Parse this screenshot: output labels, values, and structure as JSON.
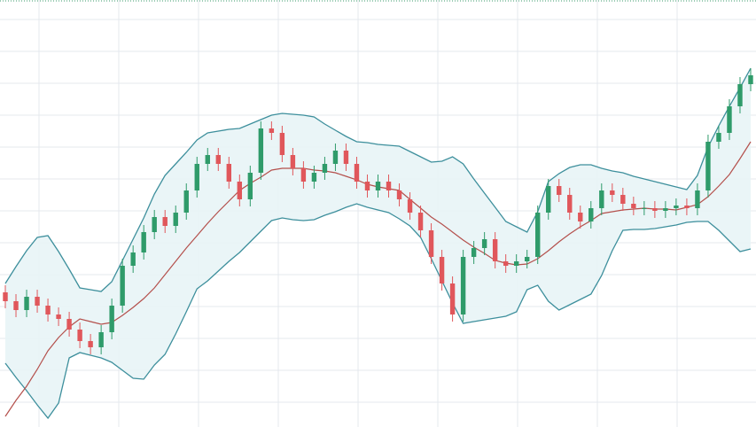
{
  "chart_data": {
    "type": "candlestick",
    "categories": [
      null,
      null,
      null,
      null,
      null,
      null,
      null,
      null,
      null,
      null,
      null,
      null,
      null,
      null,
      null,
      null,
      null,
      null,
      null,
      null,
      null,
      null,
      null,
      null,
      null,
      null,
      null,
      null,
      null,
      null,
      null,
      null,
      null,
      null,
      null,
      null,
      null,
      null,
      null,
      null,
      null,
      null,
      null,
      null,
      null,
      null,
      null,
      null,
      null,
      null,
      null,
      null,
      null,
      null,
      null,
      null,
      null,
      null,
      null,
      null,
      null,
      null,
      null,
      null,
      null,
      null,
      null,
      null,
      null,
      null,
      null
    ],
    "open": [
      152,
      142,
      132,
      147,
      137,
      127,
      122,
      110,
      97,
      90,
      107,
      137,
      182,
      197,
      220,
      237,
      227,
      242,
      267,
      297,
      307,
      297,
      277,
      257,
      287,
      337,
      332,
      307,
      292,
      277,
      287,
      297,
      312,
      297,
      277,
      267,
      277,
      267,
      257,
      242,
      222,
      192,
      162,
      127,
      192,
      202,
      212,
      187,
      182,
      187,
      192,
      242,
      272,
      262,
      242,
      232,
      247,
      267,
      262,
      252,
      247,
      247,
      244,
      247,
      250,
      247,
      267,
      322,
      332,
      362,
      387
    ],
    "high": [
      160,
      150,
      155,
      155,
      145,
      135,
      130,
      118,
      105,
      115,
      145,
      190,
      205,
      228,
      245,
      245,
      250,
      275,
      305,
      315,
      315,
      305,
      285,
      295,
      345,
      345,
      340,
      315,
      300,
      295,
      305,
      320,
      320,
      305,
      285,
      285,
      285,
      275,
      265,
      250,
      230,
      200,
      170,
      200,
      210,
      220,
      220,
      195,
      195,
      200,
      250,
      280,
      280,
      270,
      250,
      255,
      275,
      275,
      270,
      260,
      255,
      255,
      255,
      258,
      258,
      275,
      330,
      340,
      370,
      395,
      405
    ],
    "low": [
      134,
      124,
      124,
      129,
      119,
      114,
      102,
      89,
      82,
      82,
      99,
      129,
      174,
      189,
      212,
      219,
      219,
      234,
      259,
      289,
      289,
      269,
      249,
      249,
      279,
      324,
      299,
      284,
      269,
      269,
      279,
      289,
      289,
      269,
      259,
      259,
      259,
      249,
      234,
      214,
      184,
      154,
      119,
      119,
      184,
      194,
      179,
      174,
      174,
      179,
      184,
      234,
      254,
      234,
      224,
      224,
      239,
      254,
      244,
      239,
      239,
      236,
      236,
      239,
      239,
      239,
      259,
      314,
      324,
      354,
      379
    ],
    "close": [
      142,
      132,
      147,
      137,
      127,
      122,
      110,
      97,
      90,
      107,
      137,
      182,
      197,
      220,
      237,
      227,
      242,
      267,
      297,
      307,
      297,
      277,
      257,
      287,
      337,
      332,
      307,
      292,
      277,
      287,
      297,
      312,
      297,
      277,
      267,
      277,
      267,
      257,
      242,
      222,
      192,
      162,
      127,
      192,
      202,
      212,
      187,
      182,
      187,
      192,
      242,
      272,
      262,
      242,
      232,
      247,
      267,
      262,
      252,
      247,
      247,
      244,
      247,
      250,
      247,
      267,
      322,
      332,
      362,
      387,
      397
    ],
    "upper_band": [
      162,
      181,
      199,
      214,
      216,
      198,
      178,
      157,
      155,
      153,
      164,
      188,
      212,
      236,
      263,
      284,
      297,
      310,
      324,
      332,
      334,
      336,
      337,
      342,
      347,
      352,
      354,
      353,
      352,
      350,
      342,
      335,
      328,
      322,
      321,
      319,
      318,
      317,
      311,
      305,
      299,
      300,
      305,
      297,
      280,
      264,
      248,
      232,
      226,
      220,
      243,
      277,
      286,
      293,
      296,
      296,
      292,
      289,
      287,
      283,
      280,
      277,
      274,
      271,
      268,
      284,
      316,
      340,
      362,
      383,
      405
    ],
    "middle_band": [
      12,
      30,
      46,
      65,
      86,
      101,
      113,
      122,
      119,
      116,
      118,
      126,
      135,
      145,
      157,
      172,
      187,
      202,
      216,
      230,
      243,
      255,
      267,
      275,
      282,
      290,
      292,
      292,
      292,
      290,
      289,
      287,
      283,
      279,
      274,
      271,
      269,
      267,
      257,
      247,
      237,
      229,
      220,
      211,
      203,
      196,
      188,
      185,
      183,
      184,
      190,
      199,
      209,
      218,
      226,
      233,
      241,
      243,
      245,
      246,
      247,
      246,
      246,
      245,
      248,
      251,
      260,
      272,
      285,
      303,
      322
    ],
    "lower_band": [
      72,
      56,
      41,
      25,
      10,
      27,
      78,
      84,
      81,
      78,
      73,
      64,
      55,
      54,
      70,
      82,
      105,
      130,
      156,
      165,
      176,
      187,
      197,
      209,
      221,
      233,
      236,
      234,
      233,
      234,
      239,
      243,
      248,
      252,
      248,
      245,
      242,
      235,
      227,
      214,
      190,
      165,
      140,
      117,
      119,
      121,
      123,
      125,
      130,
      155,
      160,
      142,
      132,
      138,
      144,
      150,
      171,
      199,
      222,
      223,
      223,
      224,
      226,
      228,
      231,
      232,
      232,
      222,
      210,
      198,
      201
    ],
    "ylim": [
      0,
      482
    ],
    "grid": true,
    "up_color": "#2f9b6a",
    "down_color": "#e0575b",
    "band_color": "#3d8f9c",
    "band_fill": "#e8f4f6",
    "middle_color": "#b4504c"
  }
}
